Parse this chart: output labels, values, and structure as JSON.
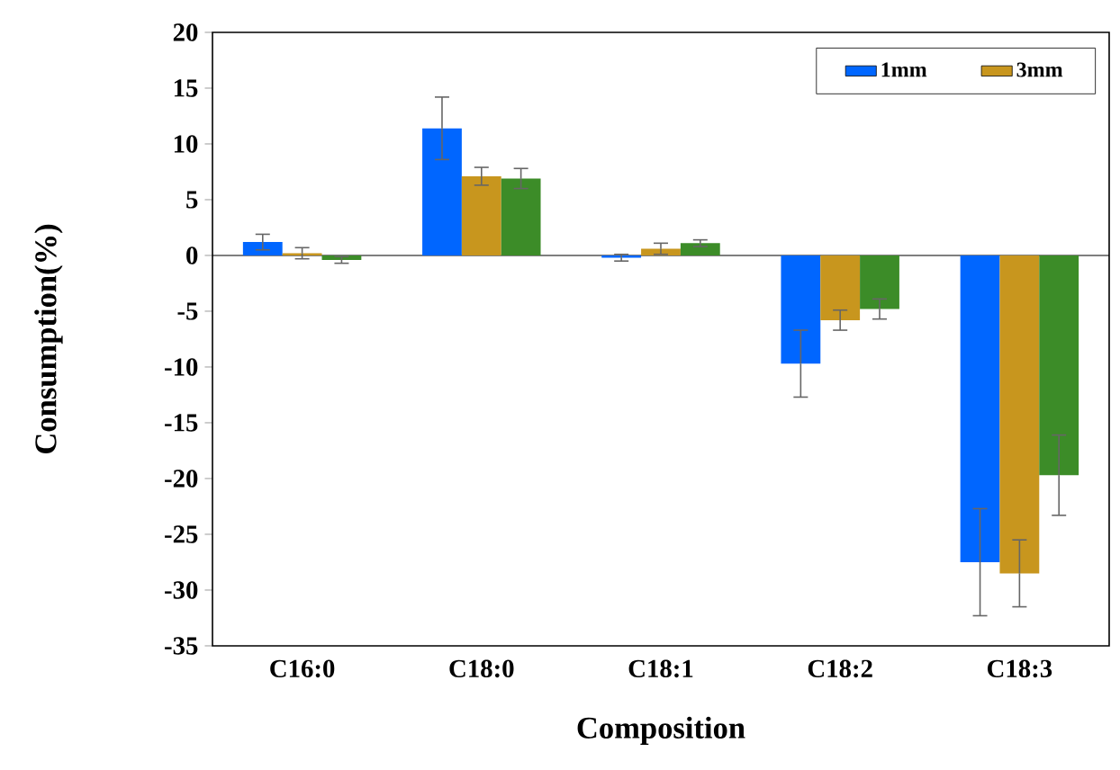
{
  "chart_data": {
    "type": "bar",
    "xlabel": "Composition",
    "ylabel": "Consumption(%)",
    "categories": [
      "C16:0",
      "C18:0",
      "C18:1",
      "C18:2",
      "C18:3"
    ],
    "series": [
      {
        "name": "1mm",
        "color": "#0066ff",
        "values": [
          1.2,
          11.4,
          -0.2,
          -9.7,
          -27.5
        ],
        "errors": [
          0.7,
          2.8,
          0.3,
          3.0,
          4.8
        ]
      },
      {
        "name": "3mm",
        "color": "#c8961e",
        "values": [
          0.2,
          7.1,
          0.6,
          -5.8,
          -28.5
        ],
        "errors": [
          0.5,
          0.8,
          0.5,
          0.9,
          3.0
        ]
      },
      {
        "color": "#3c8c28",
        "values": [
          -0.4,
          6.9,
          1.1,
          -4.8,
          -19.7
        ],
        "errors": [
          0.3,
          0.9,
          0.3,
          0.9,
          3.6
        ]
      }
    ],
    "ylim": [
      -35,
      20
    ],
    "yticks": [
      -35,
      -30,
      -25,
      -20,
      -15,
      -10,
      -5,
      0,
      5,
      10,
      15,
      20
    ],
    "legend": "top right"
  }
}
